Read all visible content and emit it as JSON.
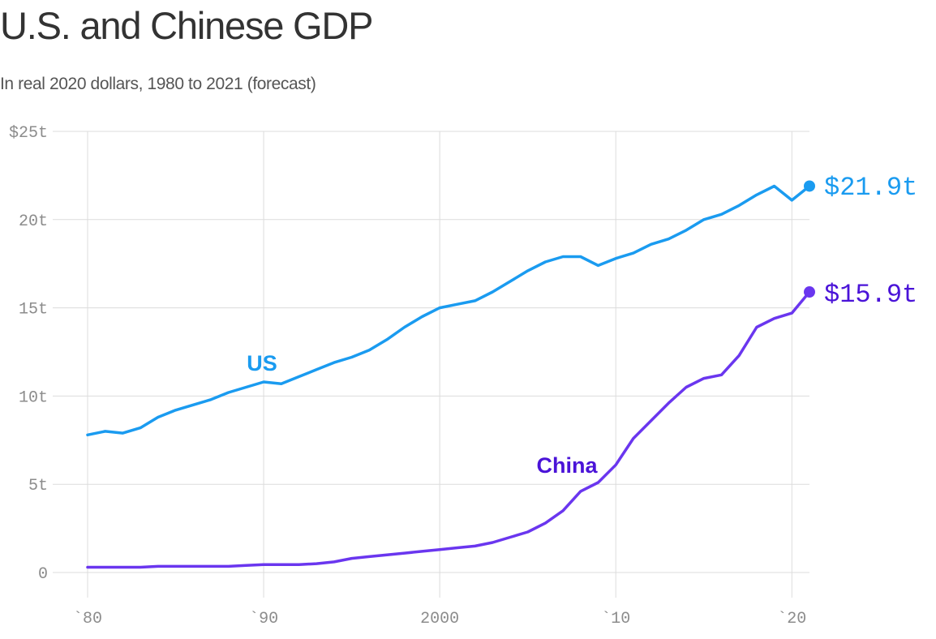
{
  "title": "U.S. and Chinese GDP",
  "subtitle": "In real 2020 dollars, 1980 to 2021 (forecast)",
  "colors": {
    "us": "#1a9bf0",
    "china": "#6a36ef",
    "china_label": "#4a13d8",
    "grid": "#dcdcdc",
    "tick": "#8c8c8c"
  },
  "chart_data": {
    "type": "line",
    "title": "U.S. and Chinese GDP",
    "subtitle": "In real 2020 dollars, 1980 to 2021 (forecast)",
    "xlabel": "",
    "ylabel": "",
    "xlim": [
      1980,
      2021
    ],
    "ylim": [
      0,
      25
    ],
    "grid": true,
    "yticks": [
      {
        "value": 0,
        "label": "0"
      },
      {
        "value": 5,
        "label": "5t"
      },
      {
        "value": 10,
        "label": "10t"
      },
      {
        "value": 15,
        "label": "15t"
      },
      {
        "value": 20,
        "label": "20t"
      },
      {
        "value": 25,
        "label": "$25t"
      }
    ],
    "xticks": [
      {
        "value": 1980,
        "label": "`80"
      },
      {
        "value": 1990,
        "label": "`90"
      },
      {
        "value": 2000,
        "label": "2000"
      },
      {
        "value": 2010,
        "label": "`10"
      },
      {
        "value": 2020,
        "label": "`20"
      }
    ],
    "x": [
      1980,
      1981,
      1982,
      1983,
      1984,
      1985,
      1986,
      1987,
      1988,
      1989,
      1990,
      1991,
      1992,
      1993,
      1994,
      1995,
      1996,
      1997,
      1998,
      1999,
      2000,
      2001,
      2002,
      2003,
      2004,
      2005,
      2006,
      2007,
      2008,
      2009,
      2010,
      2011,
      2012,
      2013,
      2014,
      2015,
      2016,
      2017,
      2018,
      2019,
      2020,
      2021
    ],
    "series": [
      {
        "name": "US",
        "label": "US",
        "end_label": "$21.9t",
        "values": [
          7.8,
          8.0,
          7.9,
          8.2,
          8.8,
          9.2,
          9.5,
          9.8,
          10.2,
          10.5,
          10.8,
          10.7,
          11.1,
          11.5,
          11.9,
          12.2,
          12.6,
          13.2,
          13.9,
          14.5,
          15.0,
          15.2,
          15.4,
          15.9,
          16.5,
          17.1,
          17.6,
          17.9,
          17.9,
          17.4,
          17.8,
          18.1,
          18.6,
          18.9,
          19.4,
          20.0,
          20.3,
          20.8,
          21.4,
          21.9,
          21.1,
          21.9
        ]
      },
      {
        "name": "China",
        "label": "China",
        "end_label": "$15.9t",
        "values": [
          0.3,
          0.3,
          0.3,
          0.3,
          0.35,
          0.35,
          0.35,
          0.35,
          0.35,
          0.4,
          0.45,
          0.45,
          0.45,
          0.5,
          0.6,
          0.8,
          0.9,
          1.0,
          1.1,
          1.2,
          1.3,
          1.4,
          1.5,
          1.7,
          2.0,
          2.3,
          2.8,
          3.5,
          4.6,
          5.1,
          6.1,
          7.6,
          8.6,
          9.6,
          10.5,
          11.0,
          11.2,
          12.3,
          13.9,
          14.4,
          14.7,
          15.9
        ]
      }
    ]
  }
}
